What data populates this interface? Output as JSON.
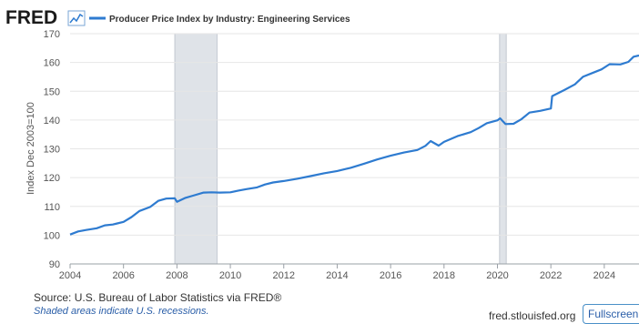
{
  "header": {
    "logo": "FRED",
    "logo_icon": "line-chart-icon",
    "legend_label": "Producer Price Index by Industry: Engineering Services",
    "legend_color": "#2e7bd0"
  },
  "footer": {
    "source": "U.S. Bureau of Labor Statistics via FRED®",
    "source_prefix": "Source: ",
    "recession_note": "Shaded areas indicate U.S. recessions.",
    "site": "fred.stlouisfed.org",
    "fullscreen_label": "Fullscreen",
    "fullscreen_icon": "expand-icon"
  },
  "chart_data": {
    "type": "line",
    "title": "",
    "xlabel": "",
    "ylabel": "Index Dec 2003=100",
    "xlim": [
      2004.0,
      2025.3
    ],
    "ylim": [
      90,
      170
    ],
    "x_ticks": [
      "2004",
      "2006",
      "2008",
      "2010",
      "2012",
      "2014",
      "2016",
      "2018",
      "2020",
      "2022",
      "2024"
    ],
    "y_ticks": [
      90,
      100,
      110,
      120,
      130,
      140,
      150,
      160,
      170
    ],
    "grid": true,
    "legend_position": "top-left",
    "recessions": [
      [
        2007.92,
        2009.5
      ],
      [
        2020.08,
        2020.33
      ]
    ],
    "recession_color": "#dfe3e8",
    "line_color": "#2e7bd0",
    "series": [
      {
        "name": "Producer Price Index by Industry: Engineering Services",
        "x": [
          2004.0,
          2004.3,
          2004.6,
          2005.0,
          2005.3,
          2005.6,
          2006.0,
          2006.3,
          2006.6,
          2007.0,
          2007.3,
          2007.6,
          2007.92,
          2008.0,
          2008.3,
          2008.6,
          2009.0,
          2009.3,
          2009.6,
          2010.0,
          2010.3,
          2010.6,
          2011.0,
          2011.3,
          2011.6,
          2012.0,
          2012.5,
          2013.0,
          2013.5,
          2014.0,
          2014.5,
          2015.0,
          2015.5,
          2016.0,
          2016.5,
          2017.0,
          2017.3,
          2017.5,
          2017.8,
          2018.0,
          2018.5,
          2019.0,
          2019.3,
          2019.6,
          2020.0,
          2020.1,
          2020.3,
          2020.6,
          2020.9,
          2021.2,
          2021.6,
          2022.0,
          2022.05,
          2022.5,
          2022.9,
          2023.2,
          2023.6,
          2023.9,
          2024.2,
          2024.6,
          2024.9,
          2025.1,
          2025.3
        ],
        "y": [
          100.2,
          101.3,
          101.8,
          102.4,
          103.4,
          103.7,
          104.6,
          106.3,
          108.4,
          109.8,
          111.9,
          112.7,
          112.8,
          111.6,
          112.9,
          113.7,
          114.8,
          114.9,
          114.8,
          114.9,
          115.5,
          116.0,
          116.6,
          117.6,
          118.3,
          118.8,
          119.6,
          120.5,
          121.5,
          122.3,
          123.4,
          124.8,
          126.3,
          127.6,
          128.7,
          129.6,
          131.0,
          132.7,
          131.1,
          132.4,
          134.4,
          135.8,
          137.2,
          138.9,
          139.9,
          140.6,
          138.6,
          138.7,
          140.3,
          142.6,
          143.2,
          144.0,
          148.3,
          150.4,
          152.4,
          155.0,
          156.5,
          157.6,
          159.4,
          159.3,
          160.2,
          162.0,
          162.4
        ]
      }
    ]
  }
}
